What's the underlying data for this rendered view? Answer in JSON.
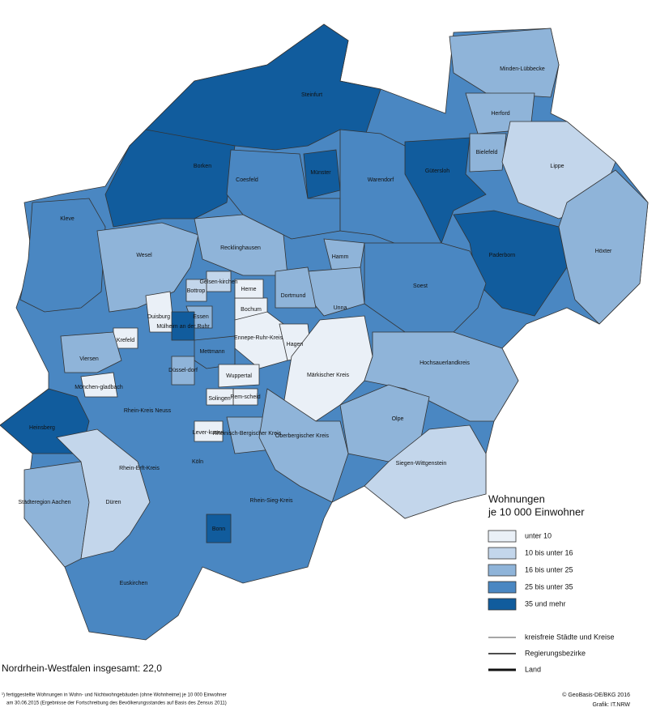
{
  "map": {
    "regions": [
      "Steinfurt",
      "Borken",
      "Coesfeld",
      "Münster",
      "Warendorf",
      "Minden-Lübbecke",
      "Herford",
      "Bielefeld",
      "Lippe",
      "Gütersloh",
      "Paderborn",
      "Höxter",
      "Kleve",
      "Wesel",
      "Recklinghausen",
      "Hamm",
      "Unna",
      "Soest",
      "Dortmund",
      "Duisburg",
      "Krefeld",
      "Essen",
      "Bochum",
      "Herne",
      "Gelsen-kirchen",
      "Bottrop",
      "Mülheim an der Ruhr",
      "Ennepe-Ruhr-Kreis",
      "Hagen",
      "Viersen",
      "Mettmann",
      "Düssel-dorf",
      "Wuppertal",
      "Rem-scheid",
      "Solingen",
      "Mönchen-gladbach",
      "Rhein-Kreis Neuss",
      "Märkischer Kreis",
      "Hochsauerlandkreis",
      "Olpe",
      "Heinsberg",
      "Lever-kusen",
      "Rheinisch-Bergischer Kreis",
      "Oberbergischer Kreis",
      "Rhein-Erft-Kreis",
      "Köln",
      "Siegen-Wittgenstein",
      "Städteregion Aachen",
      "Düren",
      "Rhein-Sieg-Kreis",
      "Bonn",
      "Euskirchen"
    ]
  },
  "legend": {
    "title": "Wohnungen",
    "subtitle": "je 10 000 Einwohner",
    "classes": [
      "unter 10",
      "10 bis unter 16",
      "16 bis unter 25",
      "25 bis unter 35",
      "35 und mehr"
    ],
    "boundaries": [
      "kreisfreie Städte und Kreise",
      "Regierungsbezirke",
      "Land"
    ]
  },
  "total": "Nordrhein-Westfalen insgesamt: 22,0",
  "footnote": [
    "¹) fertiggestellte Wohnungen in Wohn- und Nichtwohngebäuden (ohne Wohnheime) je 10 000 Einwohner",
    "am 30.06.2015 (Ergebnisse der Fortschreibung des Bevölkerungsstandes auf Basis des Zensus 2011)"
  ],
  "credits": [
    "© GeoBasis-DE/BKG 2016",
    "Grafik: IT.NRW"
  ]
}
